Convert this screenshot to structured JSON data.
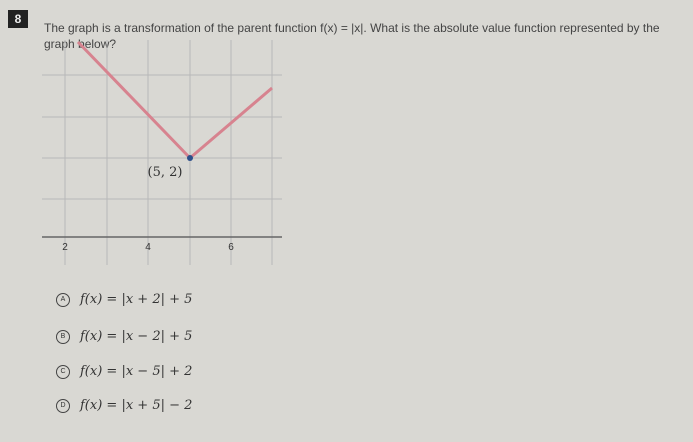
{
  "question": {
    "number": "8",
    "text": "The graph is a transformation of the parent function f(x) = |x|. What is the absolute value function represented by the graph below?"
  },
  "graph": {
    "vertex_label": "(5, 2)",
    "x_tick_labels": [
      "2",
      "4",
      "6"
    ]
  },
  "options": [
    {
      "letter": "A",
      "text": "f(x) = |x + 2| + 5"
    },
    {
      "letter": "B",
      "text": "f(x) = |x − 2| + 5"
    },
    {
      "letter": "C",
      "text": "f(x) = |x − 5| + 2"
    },
    {
      "letter": "D",
      "text": "f(x) = |x + 5| − 2"
    }
  ]
}
